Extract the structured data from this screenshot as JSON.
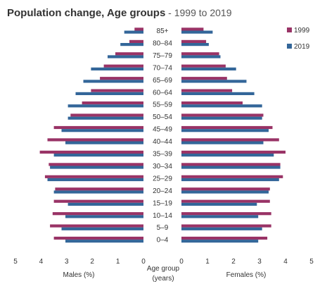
{
  "chart_data": {
    "type": "bar",
    "orientation": "horizontal-pyramid",
    "title": "Population change, Age groups",
    "subtitle": " - 1999 to 2019",
    "categories": [
      "85+",
      "80–84",
      "75–79",
      "70–74",
      "65–69",
      "60–64",
      "55–59",
      "50–54",
      "45–49",
      "40–44",
      "35–39",
      "30–34",
      "25–29",
      "20–24",
      "15–19",
      "10–14",
      "5–9",
      "0–4"
    ],
    "series": [
      {
        "name": "1999",
        "color": "#993366",
        "males": [
          0.35,
          0.55,
          1.1,
          1.55,
          1.7,
          2.05,
          2.4,
          2.85,
          3.5,
          3.75,
          4.05,
          3.7,
          3.85,
          3.45,
          3.5,
          3.55,
          3.65,
          3.5
        ],
        "females": [
          0.85,
          0.95,
          1.45,
          1.7,
          1.75,
          1.95,
          2.35,
          3.15,
          3.5,
          3.75,
          4.0,
          3.8,
          3.9,
          3.4,
          3.4,
          3.45,
          3.45,
          3.3
        ]
      },
      {
        "name": "2019",
        "color": "#336699",
        "males": [
          0.75,
          0.9,
          1.4,
          2.05,
          2.35,
          2.65,
          2.95,
          2.95,
          3.2,
          3.05,
          3.5,
          3.65,
          3.75,
          3.5,
          2.95,
          3.05,
          3.2,
          3.05
        ],
        "females": [
          1.2,
          1.05,
          1.5,
          2.1,
          2.5,
          2.8,
          3.1,
          3.1,
          3.35,
          3.15,
          3.55,
          3.8,
          3.75,
          3.35,
          2.9,
          2.95,
          3.1,
          2.95
        ]
      }
    ],
    "xticks_left": [
      "5",
      "4",
      "3",
      "2",
      "1",
      "0"
    ],
    "xticks_right": [
      "0",
      "1",
      "2",
      "3",
      "4",
      "5"
    ],
    "xlim": [
      0,
      5
    ],
    "xlabel_left": "Males (%)",
    "xlabel_center": [
      "Age group",
      "(years)"
    ],
    "xlabel_right": "Females (%)",
    "legend_position": "right"
  }
}
